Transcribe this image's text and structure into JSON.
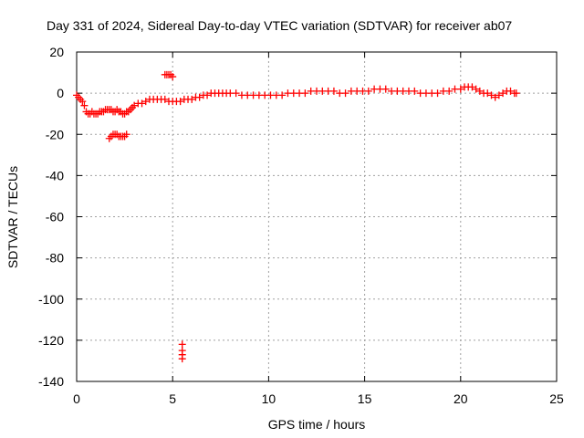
{
  "chart_data": {
    "type": "scatter",
    "title": "Day 331 of 2024, Sidereal Day-to-day VTEC variation (SDTVAR) for receiver ab07",
    "xlabel": "GPS time / hours",
    "ylabel": "SDTVAR / TECUs",
    "xlim": [
      0,
      25
    ],
    "ylim": [
      -140,
      20
    ],
    "xticks": [
      "0",
      "5",
      "10",
      "15",
      "20",
      "25"
    ],
    "yticks": [
      "20",
      "0",
      "-20",
      "-40",
      "-60",
      "-80",
      "-100",
      "-120",
      "-140"
    ],
    "grid": true,
    "marker": "+",
    "color": "#ff0000",
    "series": [
      {
        "name": "SDTVAR",
        "x": [
          0.0,
          0.1,
          0.2,
          0.3,
          0.4,
          0.5,
          0.6,
          0.7,
          0.8,
          0.9,
          1.0,
          1.1,
          1.2,
          1.3,
          1.4,
          1.5,
          1.6,
          1.7,
          1.8,
          1.9,
          2.0,
          2.1,
          2.2,
          2.3,
          2.4,
          2.5,
          2.6,
          2.7,
          2.8,
          2.9,
          3.0,
          3.2,
          3.4,
          3.6,
          3.8,
          4.0,
          4.2,
          4.4,
          4.6,
          4.8,
          5.0,
          5.2,
          5.4,
          5.6,
          5.8,
          6.0,
          6.2,
          6.4,
          6.6,
          6.8,
          7.0,
          7.2,
          7.4,
          7.6,
          7.8,
          8.0,
          8.3,
          8.6,
          8.9,
          9.2,
          9.5,
          9.8,
          10.1,
          10.4,
          10.7,
          11.0,
          11.3,
          11.6,
          11.9,
          12.2,
          12.5,
          12.8,
          13.1,
          13.4,
          13.7,
          14.0,
          14.3,
          14.6,
          14.9,
          15.2,
          15.5,
          15.8,
          16.1,
          16.4,
          16.7,
          17.0,
          17.3,
          17.6,
          17.9,
          18.2,
          18.5,
          18.8,
          19.1,
          19.4,
          19.7,
          20.0,
          20.2,
          20.4,
          20.6,
          20.8,
          21.0,
          21.2,
          21.4,
          21.6,
          21.8,
          22.0,
          22.2,
          22.4,
          22.6,
          22.8,
          22.9,
          1.7,
          1.8,
          1.9,
          2.0,
          2.1,
          2.2,
          2.3,
          2.4,
          2.5,
          2.6,
          4.6,
          4.7,
          4.8,
          4.9,
          5.0,
          5.5,
          5.5,
          5.5,
          5.5
        ],
        "y": [
          -1,
          -2,
          -3,
          -4,
          -6,
          -9,
          -10,
          -10,
          -9,
          -10,
          -10,
          -10,
          -9,
          -9,
          -9,
          -8,
          -8,
          -8,
          -8,
          -9,
          -9,
          -8,
          -9,
          -9,
          -10,
          -10,
          -9,
          -9,
          -8,
          -7,
          -6,
          -5,
          -5,
          -4,
          -3,
          -3,
          -3,
          -3,
          -3,
          -4,
          -4,
          -4,
          -4,
          -3,
          -3,
          -3,
          -2,
          -2,
          -1,
          -1,
          0,
          0,
          0,
          0,
          0,
          0,
          0,
          -1,
          -1,
          -1,
          -1,
          -1,
          -1,
          -1,
          -1,
          0,
          0,
          0,
          0,
          1,
          1,
          1,
          1,
          1,
          0,
          0,
          1,
          1,
          1,
          1,
          2,
          2,
          2,
          1,
          1,
          1,
          1,
          1,
          0,
          0,
          0,
          0,
          1,
          1,
          2,
          2,
          3,
          3,
          3,
          2,
          1,
          0,
          0,
          -1,
          -2,
          -1,
          0,
          1,
          1,
          0,
          0,
          -22,
          -21,
          -20,
          -20,
          -20,
          -21,
          -21,
          -21,
          -21,
          -20,
          9,
          9,
          9,
          9,
          8,
          -122,
          -125,
          -127,
          -129
        ]
      }
    ]
  }
}
